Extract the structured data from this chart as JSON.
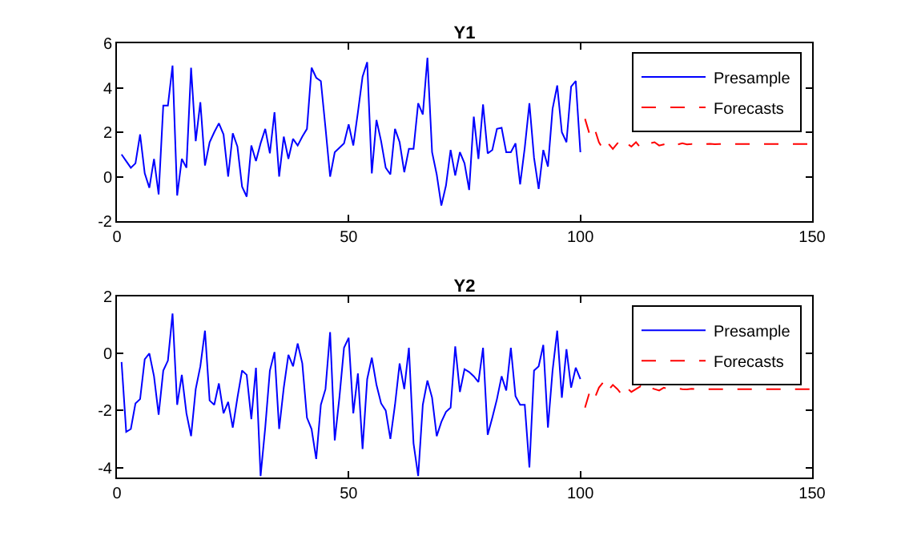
{
  "chart_data": [
    {
      "type": "line",
      "title": "Y1",
      "xlim": [
        0,
        150
      ],
      "xticks": [
        0,
        50,
        100,
        150
      ],
      "ylim": [
        -2,
        6
      ],
      "yticks": [
        -2,
        0,
        2,
        4,
        6
      ],
      "grid": false,
      "legend": "top right",
      "marker": "none",
      "series": [
        {
          "name": "Presample",
          "color": "#0000ff",
          "line_style": "solid",
          "x": [
            1,
            2,
            3,
            4,
            5,
            6,
            7,
            8,
            9,
            10,
            11,
            12,
            13,
            14,
            15,
            16,
            17,
            18,
            19,
            20,
            21,
            22,
            23,
            24,
            25,
            26,
            27,
            28,
            29,
            30,
            31,
            32,
            33,
            34,
            35,
            36,
            37,
            38,
            39,
            40,
            41,
            42,
            43,
            44,
            45,
            46,
            47,
            48,
            49,
            50,
            51,
            52,
            53,
            54,
            55,
            56,
            57,
            58,
            59,
            60,
            61,
            62,
            63,
            64,
            65,
            66,
            67,
            68,
            69,
            70,
            71,
            72,
            73,
            74,
            75,
            76,
            77,
            78,
            79,
            80,
            81,
            82,
            83,
            84,
            85,
            86,
            87,
            88,
            89,
            90,
            91,
            92,
            93,
            94,
            95,
            96,
            97,
            98,
            99,
            100
          ],
          "values": [
            1.0,
            0.7,
            0.4,
            0.6,
            1.9,
            0.15,
            -0.5,
            0.8,
            -0.8,
            3.2,
            3.2,
            5.0,
            -0.85,
            0.8,
            0.4,
            4.9,
            1.6,
            3.35,
            0.5,
            1.55,
            2.0,
            2.4,
            1.9,
            0,
            1.95,
            1.35,
            -0.45,
            -0.9,
            1.4,
            0.7,
            1.5,
            2.15,
            1.05,
            2.9,
            0,
            1.8,
            0.8,
            1.7,
            1.4,
            1.8,
            2.15,
            4.9,
            4.45,
            4.3,
            2.2,
            0,
            1.1,
            1.3,
            1.5,
            2.35,
            1.4,
            2.9,
            4.5,
            5.15,
            0.15,
            2.55,
            1.6,
            0.4,
            0.1,
            2.15,
            1.55,
            0.2,
            1.25,
            1.25,
            3.3,
            2.8,
            5.35,
            1.1,
            0.1,
            -1.3,
            -0.4,
            1.2,
            0.05,
            1.1,
            0.6,
            -0.6,
            2.7,
            0.8,
            3.25,
            1.05,
            1.2,
            2.15,
            2.2,
            1.1,
            1.1,
            1.5,
            -0.35,
            1.3,
            3.3,
            0.85,
            -0.55,
            1.2,
            0.45,
            3.05,
            4.1,
            2.0,
            1.55,
            4.05,
            4.3,
            1.1
          ]
        },
        {
          "name": "Forecasts",
          "color": "#ff0000",
          "line_style": "dashed",
          "x": [
            101,
            102,
            103,
            104,
            105,
            106,
            107,
            108,
            109,
            110,
            111,
            112,
            113,
            114,
            115,
            116,
            117,
            118,
            119,
            120,
            121,
            122,
            123,
            124,
            125,
            126,
            127,
            128,
            129,
            130,
            131,
            132,
            133,
            134,
            135,
            136,
            137,
            138,
            139,
            140,
            141,
            142,
            143,
            144,
            145,
            146,
            147,
            148,
            149,
            150
          ],
          "values": [
            2.6,
            1.9,
            2.2,
            1.55,
            1.2,
            1.5,
            1.25,
            1.5,
            1.7,
            1.5,
            1.35,
            1.55,
            1.3,
            1.45,
            1.5,
            1.55,
            1.4,
            1.45,
            1.5,
            1.4,
            1.45,
            1.5,
            1.45,
            1.47,
            1.5,
            1.45,
            1.47,
            1.48,
            1.46,
            1.47,
            1.47,
            1.47,
            1.47,
            1.47,
            1.47,
            1.47,
            1.47,
            1.47,
            1.47,
            1.47,
            1.47,
            1.47,
            1.47,
            1.47,
            1.47,
            1.47,
            1.47,
            1.47,
            1.47,
            1.47
          ]
        }
      ]
    },
    {
      "type": "line",
      "title": "Y2",
      "xlim": [
        0,
        150
      ],
      "xticks": [
        0,
        50,
        100,
        150
      ],
      "ylim": [
        -4.35,
        2
      ],
      "yticks": [
        -4,
        -2,
        0,
        2
      ],
      "grid": false,
      "legend": "top right",
      "marker": "none",
      "series": [
        {
          "name": "Presample",
          "color": "#0000ff",
          "line_style": "solid",
          "x": [
            1,
            2,
            3,
            4,
            5,
            6,
            7,
            8,
            9,
            10,
            11,
            12,
            13,
            14,
            15,
            16,
            17,
            18,
            19,
            20,
            21,
            22,
            23,
            24,
            25,
            26,
            27,
            28,
            29,
            30,
            31,
            32,
            33,
            34,
            35,
            36,
            37,
            38,
            39,
            40,
            41,
            42,
            43,
            44,
            45,
            46,
            47,
            48,
            49,
            50,
            51,
            52,
            53,
            54,
            55,
            56,
            57,
            58,
            59,
            60,
            61,
            62,
            63,
            64,
            65,
            66,
            67,
            68,
            69,
            70,
            71,
            72,
            73,
            74,
            75,
            76,
            77,
            78,
            79,
            80,
            81,
            82,
            83,
            84,
            85,
            86,
            87,
            88,
            89,
            90,
            91,
            92,
            93,
            94,
            95,
            96,
            97,
            98,
            99,
            100
          ],
          "values": [
            -0.3,
            -2.75,
            -2.65,
            -1.75,
            -1.6,
            -0.2,
            0,
            -0.8,
            -2.15,
            -0.6,
            -0.25,
            1.4,
            -1.8,
            -0.75,
            -2.1,
            -2.9,
            -1.25,
            -0.45,
            0.8,
            -1.65,
            -1.8,
            -1.05,
            -2.1,
            -1.7,
            -2.6,
            -1.55,
            -0.6,
            -0.75,
            -2.3,
            -0.5,
            -4.3,
            -2.6,
            -0.6,
            0.05,
            -2.65,
            -1.2,
            -0.05,
            -0.45,
            0.35,
            -0.35,
            -2.25,
            -2.65,
            -3.7,
            -1.8,
            -1.25,
            0.75,
            -3.05,
            -1.55,
            0.2,
            0.55,
            -2.1,
            -0.7,
            -3.35,
            -0.9,
            -0.15,
            -1.1,
            -1.75,
            -2.0,
            -3.0,
            -1.8,
            -0.35,
            -1.25,
            0.2,
            -3.15,
            -4.3,
            -1.8,
            -0.95,
            -1.55,
            -2.9,
            -2.4,
            -2.05,
            -1.9,
            0.25,
            -1.35,
            -0.55,
            -0.65,
            -0.8,
            -1.0,
            0.2,
            -2.85,
            -2.25,
            -1.6,
            -0.8,
            -1.3,
            0.2,
            -1.5,
            -1.8,
            -1.8,
            -4.0,
            -0.6,
            -0.45,
            0.3,
            -2.6,
            -0.6,
            0.8,
            -1.55,
            0.15,
            -1.2,
            -0.5,
            -0.9
          ]
        },
        {
          "name": "Forecasts",
          "color": "#ff0000",
          "line_style": "dashed",
          "x": [
            101,
            102,
            103,
            104,
            105,
            106,
            107,
            108,
            109,
            110,
            111,
            112,
            113,
            114,
            115,
            116,
            117,
            118,
            119,
            120,
            121,
            122,
            123,
            124,
            125,
            126,
            127,
            128,
            129,
            130,
            131,
            132,
            133,
            134,
            135,
            136,
            137,
            138,
            139,
            140,
            141,
            142,
            143,
            144,
            145,
            146,
            147,
            148,
            149,
            150
          ],
          "values": [
            -1.9,
            -1.35,
            -1.6,
            -1.2,
            -1.0,
            -1.3,
            -1.1,
            -1.25,
            -1.45,
            -1.2,
            -1.35,
            -1.25,
            -1.15,
            -1.3,
            -1.2,
            -1.25,
            -1.3,
            -1.2,
            -1.25,
            -1.27,
            -1.23,
            -1.25,
            -1.26,
            -1.24,
            -1.25,
            -1.25,
            -1.25,
            -1.25,
            -1.25,
            -1.25,
            -1.25,
            -1.25,
            -1.25,
            -1.25,
            -1.25,
            -1.25,
            -1.25,
            -1.25,
            -1.25,
            -1.25,
            -1.25,
            -1.25,
            -1.25,
            -1.25,
            -1.25,
            -1.25,
            -1.25,
            -1.25,
            -1.25,
            -1.25
          ]
        }
      ]
    }
  ]
}
